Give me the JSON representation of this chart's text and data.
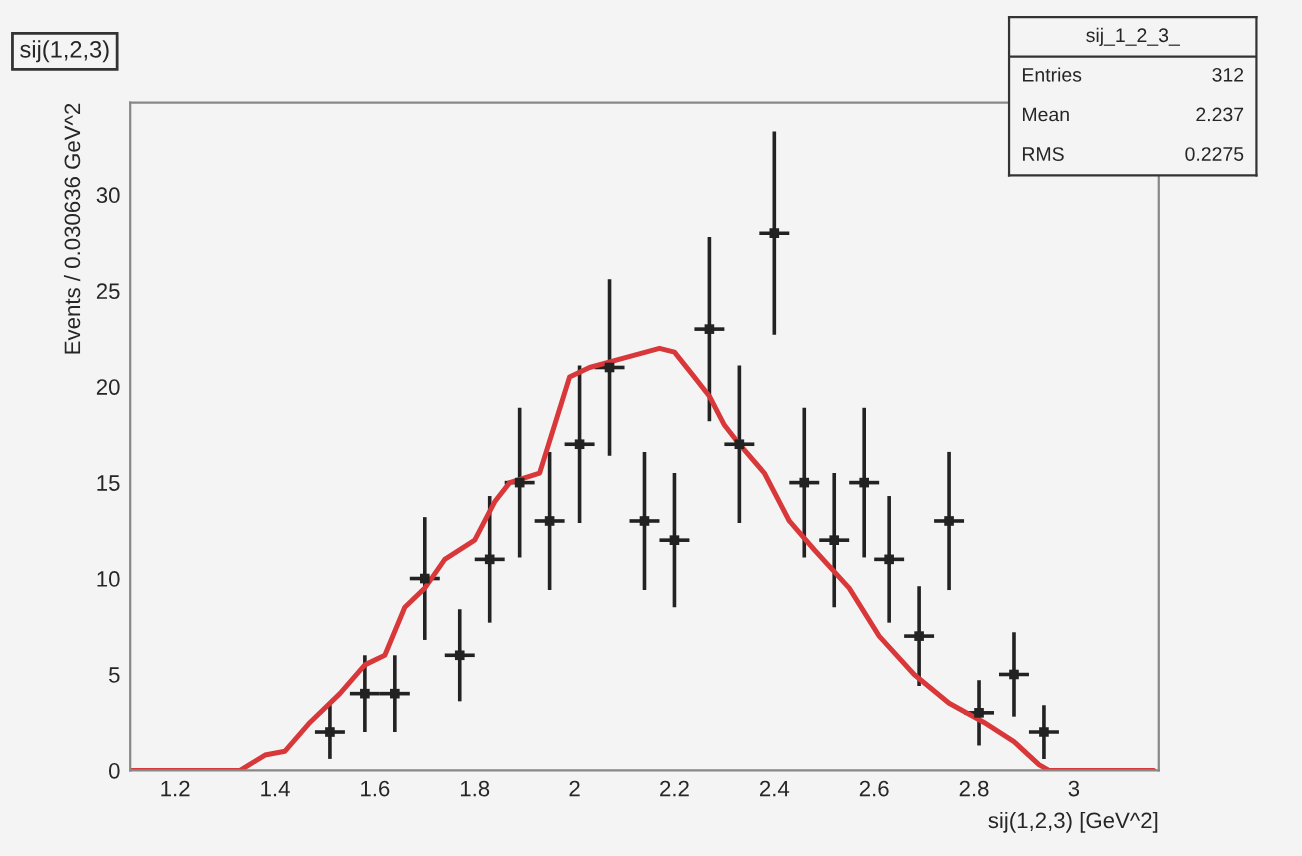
{
  "chart_data": {
    "type": "scatter",
    "title": "sij(1,2,3)",
    "xlabel": "sij(1,2,3) [GeV^2]",
    "ylabel": "Events / 0.030636 GeV^2",
    "annotations": [
      "sij_1_2_3_",
      "Entries 312",
      "Mean 2.237",
      "RMS 0.2275"
    ],
    "xlim": [
      1.11,
      3.17
    ],
    "ylim": [
      0,
      34.8
    ],
    "xticks": [
      1.2,
      1.4,
      1.6,
      1.8,
      2,
      2.2,
      2.4,
      2.6,
      2.8,
      3
    ],
    "yticks": [
      0,
      5,
      10,
      15,
      20,
      25,
      30
    ],
    "grid": false,
    "legend": false,
    "series": [
      {
        "color": "#222222",
        "x": [
          1.51,
          1.58,
          1.64,
          1.7,
          1.77,
          1.83,
          1.89,
          1.95,
          2.01,
          2.07,
          2.14,
          2.2,
          2.27,
          2.33,
          2.4,
          2.46,
          2.52,
          2.58,
          2.63,
          2.69,
          2.75,
          2.81,
          2.88,
          2.94
        ],
        "values": [
          2,
          4,
          4,
          10,
          6,
          11,
          15,
          13,
          17,
          21,
          13,
          12,
          23,
          17,
          28,
          15,
          12,
          15,
          11,
          7,
          13,
          3,
          5,
          2
        ],
        "errors": [
          1.4,
          2,
          2,
          3.2,
          2.4,
          3.3,
          3.9,
          3.6,
          4.1,
          4.6,
          3.6,
          3.5,
          4.8,
          4.1,
          5.3,
          3.9,
          3.5,
          3.9,
          3.3,
          2.6,
          3.6,
          1.7,
          2.2,
          1.4
        ],
        "xerrors": [
          0.03,
          0.03,
          0.03,
          0.03,
          0.03,
          0.03,
          0.03,
          0.03,
          0.03,
          0.03,
          0.03,
          0.03,
          0.03,
          0.03,
          0.03,
          0.03,
          0.03,
          0.03,
          0.03,
          0.03,
          0.03,
          0.03,
          0.03,
          0.03
        ]
      },
      {
        "type": "line",
        "color": "#d9383a",
        "x": [
          1.11,
          1.33,
          1.38,
          1.42,
          1.47,
          1.53,
          1.58,
          1.62,
          1.66,
          1.7,
          1.74,
          1.8,
          1.84,
          1.87,
          1.93,
          1.96,
          1.99,
          2.03,
          2.1,
          2.17,
          2.2,
          2.24,
          2.27,
          2.3,
          2.33,
          2.38,
          2.43,
          2.48,
          2.55,
          2.61,
          2.68,
          2.75,
          2.82,
          2.88,
          2.93,
          2.95,
          3.16
        ],
        "values": [
          0,
          0,
          0.8,
          1,
          2.5,
          4,
          5.5,
          6,
          8.5,
          9.5,
          11,
          12,
          14,
          15,
          15.5,
          18,
          20.5,
          21,
          21.5,
          22,
          21.8,
          20.5,
          19.5,
          18,
          17,
          15.5,
          13,
          11.5,
          9.5,
          7,
          5,
          3.5,
          2.5,
          1.5,
          0.3,
          0,
          0
        ]
      }
    ]
  }
}
